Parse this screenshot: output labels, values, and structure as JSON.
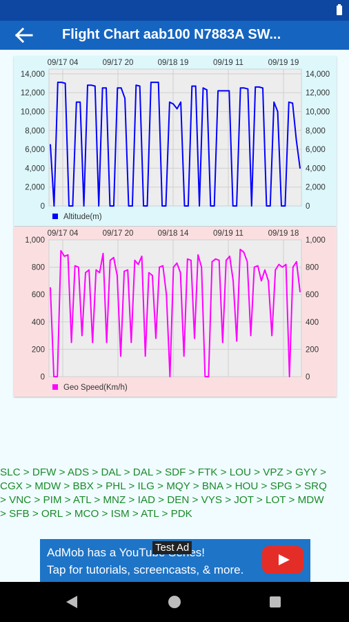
{
  "app": {
    "title": "Flight Chart aab100 N7883A SW..."
  },
  "charts": [
    {
      "type": "line",
      "background": "#ddf7fb",
      "line_color": "#0000ff",
      "x_ticks": [
        "09/17 04",
        "09/17 20",
        "09/18 19",
        "09/19 11",
        "09/19 19"
      ],
      "y_ticks": [
        "0",
        "2,000",
        "4,000",
        "6,000",
        "8,000",
        "10,000",
        "12,000",
        "14,000"
      ],
      "ylim": [
        0,
        14500
      ],
      "legend": "Altitude(m)",
      "values": [
        6500,
        0,
        13100,
        13100,
        13000,
        0,
        0,
        11000,
        11000,
        0,
        12800,
        12800,
        12700,
        0,
        12500,
        12500,
        0,
        0,
        12500,
        12500,
        11400,
        0,
        0,
        12800,
        12700,
        0,
        0,
        13100,
        13100,
        13100,
        0,
        0,
        11000,
        10800,
        10300,
        11000,
        0,
        0,
        12700,
        12700,
        0,
        12500,
        12300,
        0,
        0,
        12200,
        12200,
        12200,
        12200,
        0,
        0,
        12500,
        12500,
        12400,
        0,
        12600,
        12600,
        12500,
        0,
        0,
        11000,
        10000,
        0,
        0,
        11000,
        10900,
        7000,
        4000
      ]
    },
    {
      "type": "line",
      "background": "#fbdfe0",
      "line_color": "#ff00ff",
      "x_ticks": [
        "09/17 04",
        "09/17 20",
        "09/18 14",
        "09/19 11",
        "09/19 18"
      ],
      "y_ticks": [
        "0",
        "200",
        "400",
        "600",
        "800",
        "1,000"
      ],
      "ylim": [
        0,
        1000
      ],
      "legend": "Geo Speed(Km/h)",
      "values": [
        650,
        0,
        0,
        920,
        880,
        890,
        250,
        810,
        800,
        300,
        760,
        780,
        250,
        780,
        760,
        900,
        250,
        850,
        870,
        740,
        150,
        770,
        780,
        250,
        850,
        820,
        880,
        150,
        760,
        740,
        280,
        800,
        810,
        600,
        0,
        800,
        830,
        760,
        150,
        860,
        850,
        280,
        890,
        800,
        0,
        0,
        840,
        860,
        850,
        250,
        850,
        880,
        700,
        260,
        930,
        910,
        840,
        300,
        800,
        810,
        700,
        780,
        700,
        300,
        780,
        820,
        800,
        820,
        0,
        800,
        840,
        620
      ]
    }
  ],
  "route": [
    "SLC > DFW > ADS > DAL > DAL > SDF > FTK > LOU > VPZ > GYY >",
    "CGX > MDW > BBX > PHL > ILG > MQY > BNA > HOU > SPG > SRQ",
    "> VNC > PIM > ATL > MNZ > IAD > DEN > VYS > JOT > LOT > MDW",
    "> SFB > ORL > MCO > ISM > ATL > PDK"
  ],
  "ad": {
    "line1": "AdMob has a YouTube Series!",
    "line2": "Tap for tutorials, screencasts, & more.",
    "badge": "Test Ad"
  },
  "icons": {
    "back": "arrow-left-icon",
    "battery": "battery-icon",
    "youtube": "youtube-play-icon"
  }
}
